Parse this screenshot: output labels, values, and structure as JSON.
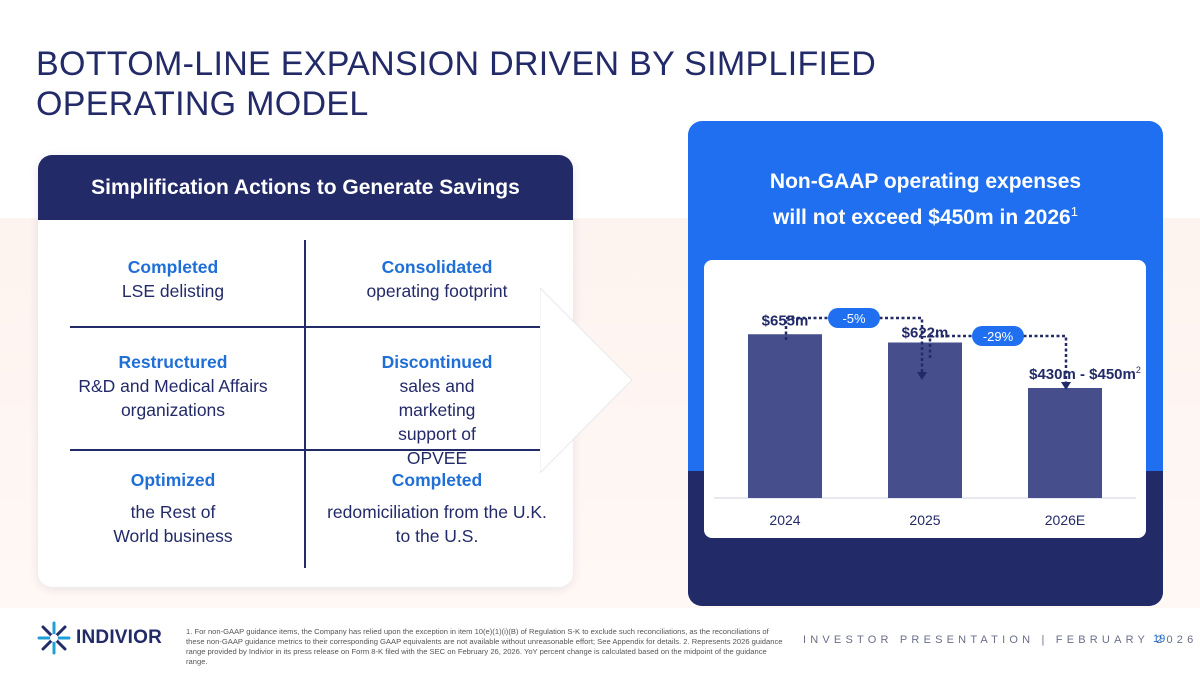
{
  "title": "BOTTOM-LINE EXPANSION DRIVEN BY SIMPLIFIED OPERATING MODEL",
  "card": {
    "header": "Simplification Actions to Generate Savings",
    "cells": [
      {
        "head": "Completed",
        "body": "LSE delisting"
      },
      {
        "head": "Consolidated",
        "body": "operating footprint"
      },
      {
        "head": "Restructured",
        "body": "R&D and Medical Affairs organizations"
      },
      {
        "head": "Discontinued",
        "body": "sales and marketing support of OPVEE"
      },
      {
        "head": "Optimized",
        "body": "the Rest of World business"
      },
      {
        "head": "Completed",
        "body": "redomiciliation from the U.K. to the U.S."
      }
    ]
  },
  "panel": {
    "title_line1": "Non-GAAP operating expenses",
    "title_line2": "will not exceed $450m in 2026",
    "title_sup": "1"
  },
  "chart_data": {
    "type": "bar",
    "title": "Non-GAAP operating expenses will not exceed $450m in 2026",
    "categories": [
      "2024",
      "2025",
      "2026E"
    ],
    "values": [
      655,
      622,
      440
    ],
    "value_labels": [
      "$655m",
      "$622m",
      "$430m - $450m"
    ],
    "value_label_sups": [
      "",
      "",
      "2"
    ],
    "ylim": [
      0,
      800
    ],
    "annotations": [
      {
        "from": "2024",
        "to": "2025",
        "label": "-5%"
      },
      {
        "from": "2025",
        "to": "2026E",
        "label": "-29%"
      }
    ],
    "colors": {
      "bar": "#464e8c",
      "badge": "#1f6ff0",
      "connector": "#232a68"
    }
  },
  "footer": {
    "logo_text": "INDIVIOR",
    "footnote": "1. For non-GAAP guidance items, the Company has relied upon the exception in item 10(e)(1)(i)(B) of Regulation S-K to exclude such reconciliations, as the reconciliations of these non-GAAP guidance metrics to their corresponding GAAP equivalents are not available without unreasonable effort; See Appendix for details. 2. Represents 2026 guidance range provided by Indivior in its press release on Form 8-K filed with the SEC on February 26, 2026. YoY percent change is calculated based on the midpoint of the guidance range.",
    "presentation": "INVESTOR PRESENTATION | FEBRUARY 2026",
    "page": "19"
  }
}
